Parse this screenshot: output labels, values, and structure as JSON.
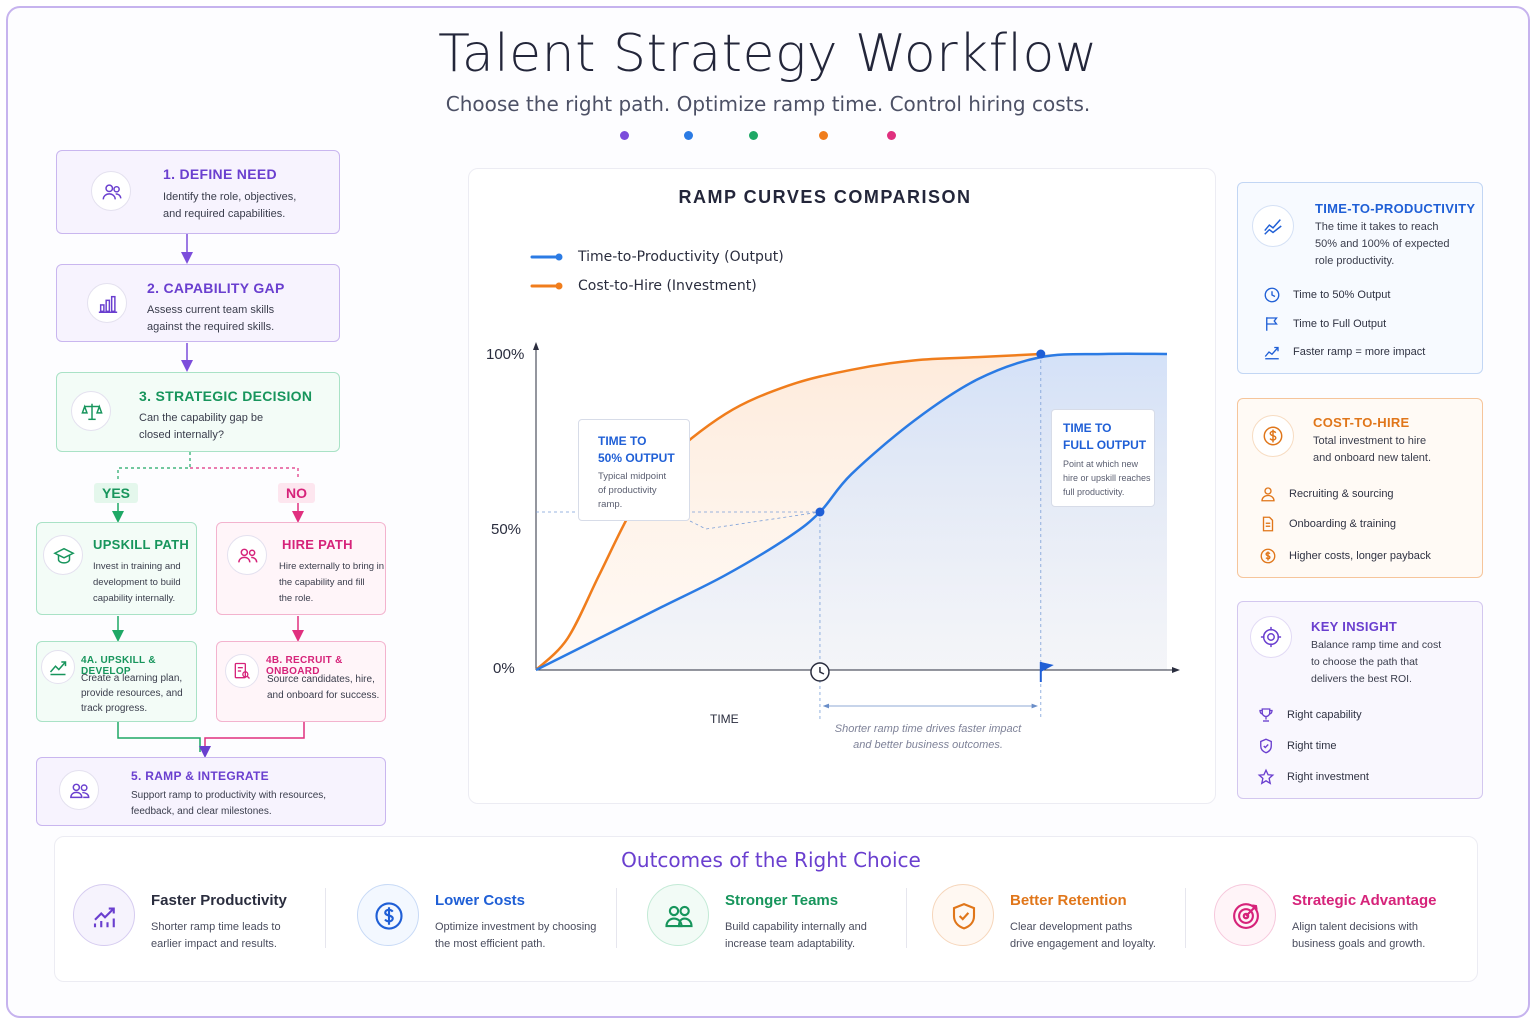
{
  "header": {
    "title": "Talent Strategy Workflow",
    "subtitle": "Choose the right path. Optimize ramp time. Control hiring costs.",
    "dot_colors": [
      "#7c4ddb",
      "#2b7be4",
      "#1fa866",
      "#f07d1c",
      "#e0307f"
    ]
  },
  "flow": {
    "step1": {
      "title": "1. DEFINE NEED",
      "desc1": "Identify the role, objectives,",
      "desc2": "and required capabilities.",
      "icon": "people-icon"
    },
    "step2": {
      "title": "2. CAPABILITY GAP",
      "desc1": "Assess current team skills",
      "desc2": "against the required skills.",
      "icon": "bar-chart-icon"
    },
    "step3": {
      "title": "3. STRATEGIC DECISION",
      "desc1": "Can the capability gap be",
      "desc2": "closed internally?",
      "icon": "scale-icon"
    },
    "yes_label": "YES",
    "no_label": "NO",
    "upskill": {
      "title": "UPSKILL PATH",
      "desc1": "Invest in training and",
      "desc2": "development to build",
      "desc3": "capability internally.",
      "icon": "graduation-cap-icon"
    },
    "hire": {
      "title": "HIRE PATH",
      "desc1": "Hire externally to bring in",
      "desc2": "the capability and fill",
      "desc3": "the role.",
      "icon": "people-icon"
    },
    "step4a": {
      "title": "4A. UPSKILL & DEVELOP",
      "desc1": "Create a learning plan,",
      "desc2": "provide resources, and",
      "desc3": "track progress.",
      "icon": "trend-icon"
    },
    "step4b": {
      "title": "4B. RECRUIT & ONBOARD",
      "desc1": "Source candidates, hire,",
      "desc2": "and onboard for success.",
      "icon": "document-search-icon"
    },
    "step5": {
      "title": "5. RAMP & INTEGRATE",
      "desc1": "Support ramp to productivity with resources,",
      "desc2": "feedback, and clear milestones.",
      "icon": "people-icon"
    }
  },
  "chart_data": {
    "type": "line",
    "title": "RAMP CURVES COMPARISON",
    "xlabel": "TIME",
    "ylabel": "",
    "yticks": [
      "100%",
      "50%",
      "0%"
    ],
    "ylim": [
      0,
      100
    ],
    "xlim": [
      0,
      100
    ],
    "series": [
      {
        "name": "Time-to-Productivity (Output)",
        "color": "#2b7be4",
        "x": [
          0,
          10,
          20,
          30,
          40,
          45,
          50,
          60,
          70,
          80,
          90,
          100
        ],
        "y": [
          0,
          10,
          20,
          30,
          42,
          50,
          62,
          79,
          92,
          99,
          100,
          100
        ]
      },
      {
        "name": "Cost-to-Hire (Investment)",
        "color": "#f07d1c",
        "x": [
          0,
          5,
          10,
          15,
          20,
          30,
          40,
          50,
          60,
          70,
          80
        ],
        "y": [
          0,
          10,
          30,
          50,
          65,
          81,
          90,
          95,
          98,
          99,
          100
        ]
      }
    ],
    "markers": [
      {
        "label": "50% output",
        "x": 45,
        "y": 50
      },
      {
        "label": "full output",
        "x": 80,
        "y": 100
      }
    ],
    "callout_50": {
      "title1": "TIME TO",
      "title2": "50% OUTPUT",
      "desc1": "Typical midpoint",
      "desc2": "of productivity",
      "desc3": "ramp."
    },
    "callout_full": {
      "title1": "TIME TO",
      "title2": "FULL OUTPUT",
      "desc1": "Point at which new",
      "desc2": "hire or upskill reaches",
      "desc3": "full productivity."
    },
    "note1": "Shorter ramp time drives faster impact",
    "note2": "and better business outcomes."
  },
  "side": {
    "ttp": {
      "title": "TIME-TO-PRODUCTIVITY",
      "desc1": "The time it takes to reach",
      "desc2": "50% and 100% of expected",
      "desc3": "role productivity.",
      "items": [
        "Time to 50% Output",
        "Time to Full Output",
        "Faster ramp = more impact"
      ]
    },
    "cth": {
      "title": "COST-TO-HIRE",
      "desc1": "Total investment to hire",
      "desc2": "and onboard new talent.",
      "items": [
        "Recruiting & sourcing",
        "Onboarding & training",
        "Higher costs, longer payback"
      ]
    },
    "insight": {
      "title": "KEY INSIGHT",
      "desc1": "Balance ramp time and cost",
      "desc2": "to choose the path that",
      "desc3": "delivers the best ROI.",
      "items": [
        "Right capability",
        "Right time",
        "Right investment"
      ]
    }
  },
  "outcomes": {
    "title": "Outcomes of the Right Choice",
    "items": [
      {
        "title": "Faster Productivity",
        "desc1": "Shorter ramp time leads to",
        "desc2": "earlier impact and results.",
        "color": "#2a2d3e",
        "icon": "growth-chart-icon"
      },
      {
        "title": "Lower Costs",
        "desc1": "Optimize investment by choosing",
        "desc2": "the most efficient path.",
        "color": "#1f5fd6",
        "icon": "dollar-icon"
      },
      {
        "title": "Stronger Teams",
        "desc1": "Build capability internally and",
        "desc2": "increase team adaptability.",
        "color": "#17955c",
        "icon": "team-icon"
      },
      {
        "title": "Better Retention",
        "desc1": "Clear development paths",
        "desc2": "drive engagement and loyalty.",
        "color": "#e0761a",
        "icon": "shield-check-icon"
      },
      {
        "title": "Strategic Advantage",
        "desc1": "Align talent decisions with",
        "desc2": "business goals and growth.",
        "color": "#d6237a",
        "icon": "target-icon"
      }
    ]
  }
}
